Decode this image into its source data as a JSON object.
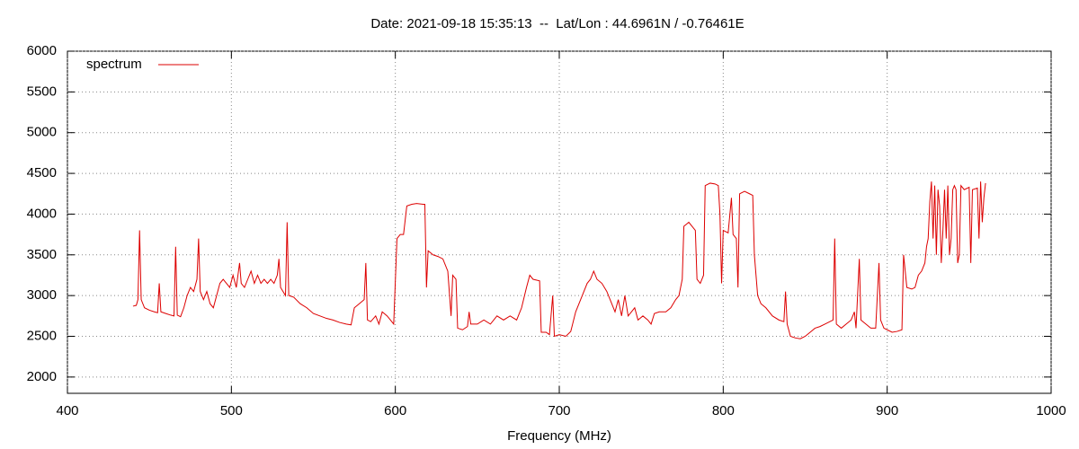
{
  "chart_data": {
    "type": "line",
    "title": "Date: 2021-09-18 15:35:13  --  Lat/Lon : 44.6961N / -0.76461E",
    "xlabel": "Frequency (MHz)",
    "x": [
      440,
      442,
      443,
      444,
      445,
      447,
      450,
      453,
      455,
      456,
      457,
      460,
      463,
      465,
      466,
      467,
      469,
      471,
      473,
      475,
      477,
      479,
      480,
      481,
      483,
      485,
      487,
      489,
      491,
      493,
      495,
      497,
      499,
      501,
      503,
      505,
      506,
      508,
      510,
      512,
      514,
      516,
      518,
      520,
      522,
      524,
      526,
      528,
      529,
      530,
      533,
      534,
      535,
      538,
      542,
      546,
      550,
      554,
      558,
      562,
      566,
      570,
      573,
      575,
      578,
      581,
      582,
      583,
      585,
      588,
      590,
      592,
      595,
      597,
      599,
      601,
      603,
      605,
      607,
      610,
      613,
      617,
      618,
      619,
      620,
      623,
      626,
      629,
      632,
      634,
      635,
      637,
      638,
      641,
      644,
      645,
      646,
      650,
      654,
      658,
      662,
      666,
      670,
      674,
      677,
      680,
      682,
      684,
      688,
      689,
      692,
      694,
      696,
      697,
      700,
      704,
      707,
      710,
      714,
      717,
      719,
      721,
      723,
      726,
      729,
      732,
      734,
      736,
      738,
      740,
      742,
      744,
      746,
      748,
      751,
      754,
      756,
      758,
      761,
      765,
      768,
      771,
      773,
      775,
      776,
      779,
      781,
      783,
      784,
      786,
      788,
      789,
      792,
      795,
      797,
      798,
      799,
      800,
      803,
      805,
      806,
      808,
      809,
      810,
      813,
      816,
      818,
      819,
      821,
      823,
      826,
      830,
      834,
      837,
      838,
      839,
      841,
      844,
      847,
      850,
      853,
      856,
      859,
      862,
      865,
      867,
      868,
      869,
      872,
      875,
      878,
      880,
      881,
      883,
      884,
      887,
      890,
      893,
      895,
      896,
      898,
      900,
      903,
      906,
      909,
      910,
      912,
      915,
      917,
      919,
      921,
      923,
      924,
      925,
      926,
      927,
      928,
      929,
      930,
      931,
      932,
      933,
      934,
      935,
      936,
      937,
      938,
      939,
      940,
      941,
      942,
      943,
      944,
      945,
      947,
      950,
      951,
      952,
      955,
      956,
      957,
      958,
      959,
      960
    ],
    "series": [
      {
        "name": "spectrum",
        "color": "#dd0000",
        "values": [
          2870,
          2880,
          2950,
          3800,
          2950,
          2850,
          2820,
          2800,
          2790,
          3150,
          2800,
          2780,
          2760,
          2750,
          3600,
          2760,
          2740,
          2850,
          3000,
          3100,
          3050,
          3200,
          3700,
          3050,
          2950,
          3050,
          2900,
          2850,
          3000,
          3150,
          3200,
          3150,
          3100,
          3250,
          3100,
          3400,
          3150,
          3100,
          3200,
          3300,
          3150,
          3250,
          3150,
          3200,
          3150,
          3200,
          3150,
          3250,
          3450,
          3100,
          3000,
          3900,
          3000,
          2980,
          2900,
          2850,
          2780,
          2750,
          2720,
          2700,
          2670,
          2650,
          2640,
          2850,
          2900,
          2950,
          3400,
          2700,
          2680,
          2750,
          2650,
          2800,
          2750,
          2700,
          2650,
          3700,
          3750,
          3750,
          4100,
          4120,
          4130,
          4120,
          4120,
          3100,
          3550,
          3500,
          3480,
          3450,
          3300,
          2750,
          3250,
          3200,
          2600,
          2580,
          2620,
          2800,
          2650,
          2650,
          2700,
          2650,
          2750,
          2700,
          2750,
          2700,
          2850,
          3100,
          3250,
          3200,
          3180,
          2550,
          2550,
          2520,
          3000,
          2500,
          2520,
          2500,
          2560,
          2800,
          3000,
          3150,
          3200,
          3300,
          3200,
          3150,
          3050,
          2900,
          2800,
          2950,
          2750,
          3000,
          2750,
          2800,
          2850,
          2700,
          2750,
          2700,
          2650,
          2780,
          2800,
          2800,
          2850,
          2950,
          3000,
          3200,
          3850,
          3900,
          3850,
          3800,
          3200,
          3150,
          3250,
          4350,
          4380,
          4370,
          4350,
          4000,
          3150,
          3800,
          3770,
          4200,
          3750,
          3700,
          3100,
          4250,
          4280,
          4250,
          4230,
          3500,
          3000,
          2900,
          2850,
          2750,
          2700,
          2680,
          3050,
          2650,
          2500,
          2480,
          2470,
          2500,
          2550,
          2600,
          2620,
          2650,
          2680,
          2700,
          3700,
          2650,
          2600,
          2650,
          2700,
          2800,
          2600,
          3450,
          2700,
          2650,
          2600,
          2600,
          3400,
          2700,
          2600,
          2580,
          2550,
          2560,
          2580,
          3500,
          3100,
          3080,
          3100,
          3250,
          3300,
          3400,
          3600,
          3700,
          4150,
          4400,
          3700,
          4350,
          3500,
          4300,
          4100,
          3400,
          3800,
          4300,
          3700,
          4350,
          3500,
          3700,
          4300,
          4350,
          4300,
          3400,
          3500,
          4350,
          4300,
          4330,
          3400,
          4300,
          4320,
          3700,
          4400,
          3900,
          4200,
          4380
        ]
      }
    ],
    "xlim": [
      400,
      1000
    ],
    "xticks": [
      400,
      500,
      600,
      700,
      800,
      900,
      1000
    ],
    "ylim": [
      1800,
      6000
    ],
    "yticks": [
      2000,
      2500,
      3000,
      3500,
      4000,
      4500,
      5000,
      5500,
      6000
    ],
    "grid": true,
    "legend": "top-left"
  }
}
